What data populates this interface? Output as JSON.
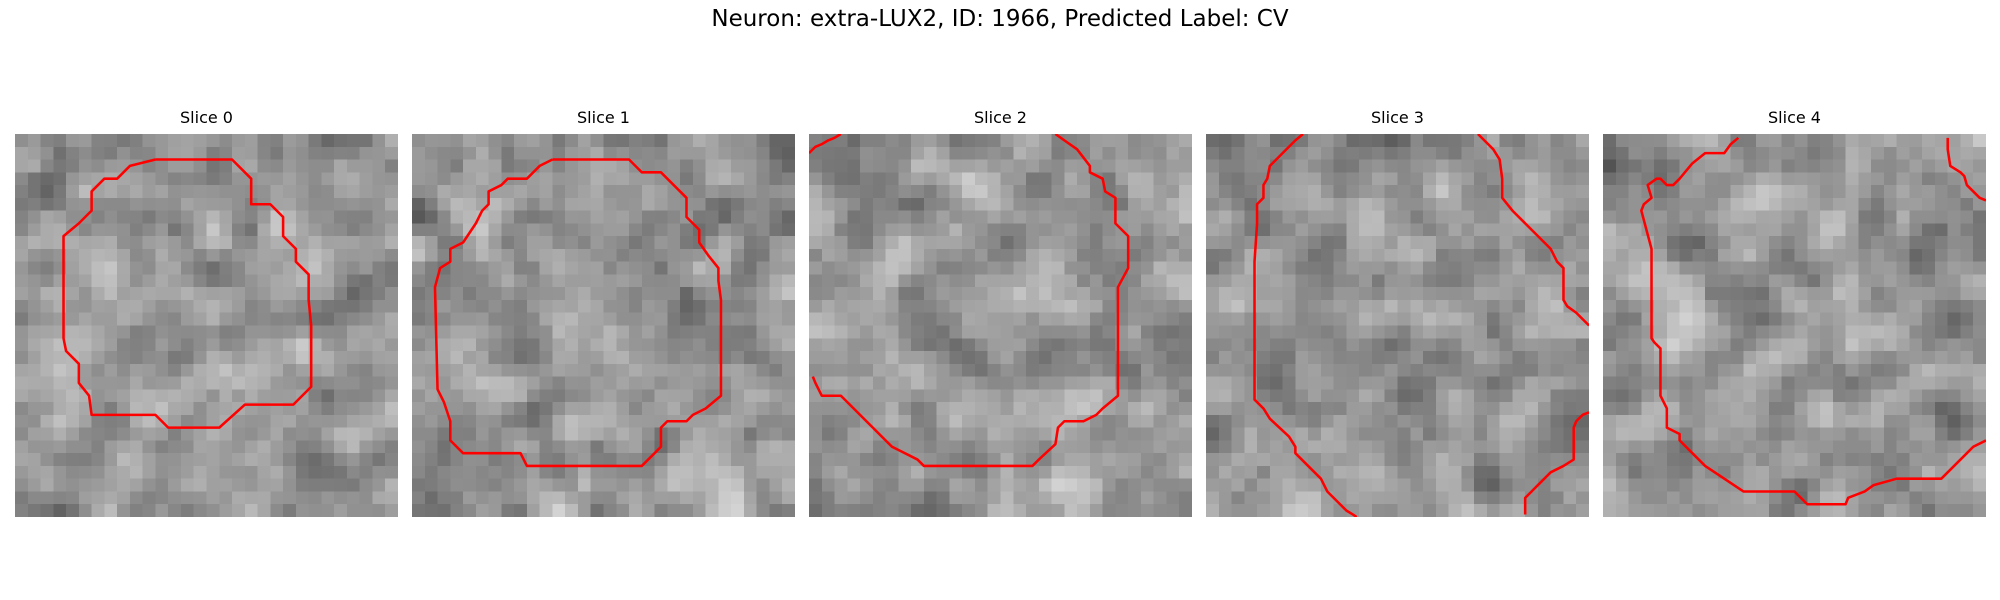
{
  "title": "Neuron: extra-LUX2, ID: 1966, Predicted Label: CV",
  "contour_color": "#ff0000",
  "colormap": "gray",
  "grid_size": 30,
  "panels": [
    {
      "label": "Slice 0",
      "contours": [
        [
          [
            11,
            2
          ],
          [
            17,
            2
          ],
          [
            18.5,
            3.5
          ],
          [
            18.5,
            5.5
          ],
          [
            20,
            5.5
          ],
          [
            21,
            6.5
          ],
          [
            21,
            8
          ],
          [
            22,
            9
          ],
          [
            22,
            10
          ],
          [
            23,
            11
          ],
          [
            23,
            13
          ],
          [
            23.2,
            15
          ],
          [
            23.2,
            19.8
          ],
          [
            21.8,
            21.2
          ],
          [
            18,
            21.2
          ],
          [
            16,
            23
          ],
          [
            12,
            23
          ],
          [
            11,
            22
          ],
          [
            6,
            22
          ],
          [
            5.8,
            20.5
          ],
          [
            5,
            19.5
          ],
          [
            5,
            18
          ],
          [
            4,
            17
          ],
          [
            3.8,
            16
          ],
          [
            3.8,
            8
          ],
          [
            5,
            7
          ],
          [
            6,
            6
          ],
          [
            6,
            4.5
          ],
          [
            7,
            3.5
          ],
          [
            8,
            3.5
          ],
          [
            9,
            2.5
          ],
          [
            11,
            2
          ]
        ]
      ],
      "seed": 11
    },
    {
      "label": "Slice 1",
      "contours": [
        [
          [
            11,
            2
          ],
          [
            17,
            2
          ],
          [
            18,
            3
          ],
          [
            19.5,
            3
          ],
          [
            21.5,
            5
          ],
          [
            21.5,
            6.5
          ],
          [
            22.5,
            7.5
          ],
          [
            22.5,
            8.5
          ],
          [
            23.2,
            9.5
          ],
          [
            24,
            10.5
          ],
          [
            24,
            11.5
          ],
          [
            24.2,
            13
          ],
          [
            24.2,
            20.5
          ],
          [
            23,
            21.5
          ],
          [
            22,
            22
          ],
          [
            21.5,
            22.5
          ],
          [
            20,
            22.5
          ],
          [
            19.5,
            23
          ],
          [
            19.5,
            24.5
          ],
          [
            19,
            25
          ],
          [
            18,
            26
          ],
          [
            9,
            26
          ],
          [
            8.5,
            25
          ],
          [
            4,
            25
          ],
          [
            3,
            24
          ],
          [
            3,
            22.5
          ],
          [
            2.5,
            21
          ],
          [
            2,
            20
          ],
          [
            1.8,
            12
          ],
          [
            2.2,
            10.5
          ],
          [
            3,
            10
          ],
          [
            3,
            9
          ],
          [
            4,
            8.5
          ],
          [
            5,
            7
          ],
          [
            5.5,
            6
          ],
          [
            6,
            5.5
          ],
          [
            6,
            4.5
          ],
          [
            7,
            4
          ],
          [
            7.5,
            3.5
          ],
          [
            9,
            3.5
          ],
          [
            10,
            2.5
          ],
          [
            11,
            2
          ]
        ]
      ],
      "seed": 23
    },
    {
      "label": "Slice 2",
      "contours": [
        [
          [
            0,
            1.5
          ],
          [
            0.5,
            1
          ],
          [
            1,
            0.8
          ],
          [
            1.5,
            0.5
          ],
          [
            2,
            0.3
          ],
          [
            2.5,
            0
          ]
        ],
        [
          [
            19.3,
            0
          ],
          [
            20,
            0.5
          ],
          [
            21,
            1.2
          ],
          [
            22,
            2.5
          ],
          [
            22,
            3
          ],
          [
            23,
            3.5
          ],
          [
            23.2,
            4.5
          ],
          [
            24,
            5
          ],
          [
            24,
            7
          ],
          [
            25,
            8
          ],
          [
            25,
            9
          ],
          [
            25,
            10.5
          ],
          [
            24.2,
            12
          ],
          [
            24.2,
            20.5
          ],
          [
            23,
            21.5
          ],
          [
            22.5,
            22
          ],
          [
            21.5,
            22.5
          ],
          [
            20,
            22.5
          ],
          [
            19.5,
            23
          ],
          [
            19.3,
            24.3
          ],
          [
            18,
            25.5
          ],
          [
            17.5,
            26
          ],
          [
            9,
            26
          ],
          [
            8.5,
            25.5
          ],
          [
            7.5,
            25
          ],
          [
            6.5,
            24.5
          ],
          [
            5,
            23
          ],
          [
            4,
            22
          ],
          [
            3,
            21
          ],
          [
            2.5,
            20.5
          ],
          [
            1,
            20.5
          ],
          [
            0.5,
            19.5
          ],
          [
            0.3,
            19
          ]
        ]
      ],
      "seed": 37
    },
    {
      "label": "Slice 3",
      "contours": [
        [
          [
            7.6,
            0
          ],
          [
            7,
            0.5
          ],
          [
            6,
            1.5
          ],
          [
            5,
            2.5
          ],
          [
            4.8,
            3.5
          ],
          [
            4.5,
            4
          ],
          [
            4.5,
            5
          ],
          [
            4,
            5.5
          ],
          [
            4,
            7
          ],
          [
            3.8,
            10
          ],
          [
            3.8,
            20.8
          ],
          [
            4.5,
            21.5
          ],
          [
            5,
            22.3
          ],
          [
            6.5,
            23.7
          ],
          [
            7,
            24.5
          ],
          [
            7,
            25
          ],
          [
            7.5,
            25.5
          ],
          [
            9,
            27
          ],
          [
            9.5,
            28
          ],
          [
            10,
            28.5
          ],
          [
            10.5,
            29
          ],
          [
            11,
            29.5
          ],
          [
            11.5,
            29.8
          ],
          [
            11.8,
            30
          ]
        ],
        [
          [
            21.3,
            0
          ],
          [
            21.8,
            0.5
          ],
          [
            22.5,
            1.2
          ],
          [
            23,
            2
          ],
          [
            23.2,
            3.5
          ],
          [
            23.2,
            5
          ],
          [
            24,
            6
          ],
          [
            25.5,
            7.5
          ],
          [
            27,
            9
          ],
          [
            27.5,
            10
          ],
          [
            28,
            10.5
          ],
          [
            28,
            12.5
          ],
          [
            28,
            13
          ],
          [
            28.3,
            13.5
          ],
          [
            29,
            14
          ],
          [
            29.5,
            14.5
          ],
          [
            30,
            15
          ]
        ],
        [
          [
            25,
            29.8
          ],
          [
            25,
            28.5
          ],
          [
            25.5,
            28
          ],
          [
            26,
            27.5
          ],
          [
            26.5,
            27
          ],
          [
            27,
            26.5
          ],
          [
            28,
            26
          ],
          [
            28.8,
            25.5
          ],
          [
            28.8,
            23
          ],
          [
            29,
            22.5
          ],
          [
            29.5,
            22
          ],
          [
            30,
            21.8
          ]
        ]
      ],
      "seed": 53
    },
    {
      "label": "Slice 4",
      "contours": [
        [
          [
            10.6,
            0.3
          ],
          [
            10,
            0.8
          ],
          [
            9.5,
            1.5
          ],
          [
            8,
            1.5
          ],
          [
            7,
            2.3
          ],
          [
            6,
            3.5
          ],
          [
            5.5,
            4
          ],
          [
            5,
            4
          ],
          [
            4.5,
            3.5
          ],
          [
            4.2,
            3.5
          ],
          [
            3.5,
            4
          ],
          [
            3.8,
            5
          ],
          [
            3.2,
            5.5
          ],
          [
            3,
            6
          ],
          [
            3.8,
            9
          ],
          [
            3.8,
            16
          ],
          [
            4,
            16.3
          ],
          [
            4.5,
            16.8
          ],
          [
            4.5,
            20.5
          ],
          [
            5,
            21.5
          ],
          [
            5,
            23
          ],
          [
            6,
            23.5
          ],
          [
            6,
            24
          ],
          [
            7,
            25
          ],
          [
            8,
            26
          ],
          [
            11,
            28
          ],
          [
            15,
            28
          ],
          [
            16,
            29
          ],
          [
            19,
            29
          ],
          [
            19.2,
            28.5
          ],
          [
            20.5,
            28
          ],
          [
            21.2,
            27.5
          ],
          [
            23,
            27
          ],
          [
            26.5,
            27
          ],
          [
            27,
            26.5
          ],
          [
            28.5,
            25
          ],
          [
            29,
            24.5
          ],
          [
            30,
            24
          ]
        ],
        [
          [
            27,
            0.3
          ],
          [
            27,
            1.2
          ],
          [
            27.2,
            2.5
          ],
          [
            28,
            3
          ],
          [
            28.3,
            3.3
          ],
          [
            28.5,
            4
          ],
          [
            29,
            4.5
          ],
          [
            29.5,
            5
          ],
          [
            30,
            5.2
          ]
        ]
      ],
      "seed": 71
    }
  ]
}
